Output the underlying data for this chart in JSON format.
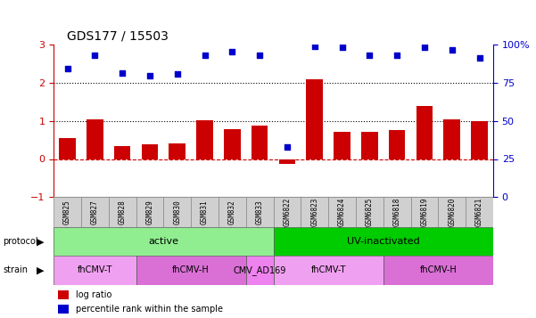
{
  "title": "GDS177 / 15503",
  "samples": [
    "GSM825",
    "GSM827",
    "GSM828",
    "GSM829",
    "GSM830",
    "GSM831",
    "GSM832",
    "GSM833",
    "GSM6822",
    "GSM6823",
    "GSM6824",
    "GSM6825",
    "GSM6818",
    "GSM6819",
    "GSM6820",
    "GSM6821"
  ],
  "log_ratio": [
    0.55,
    1.05,
    0.35,
    0.38,
    0.42,
    1.02,
    0.78,
    0.88,
    -0.12,
    2.1,
    0.72,
    0.72,
    0.75,
    1.38,
    1.05,
    1.0
  ],
  "percentile": [
    2.38,
    2.72,
    2.25,
    2.18,
    2.22,
    2.72,
    2.82,
    2.72,
    0.32,
    2.95,
    2.92,
    2.72,
    2.72,
    2.92,
    2.85,
    2.65
  ],
  "protocol_groups": [
    {
      "label": "active",
      "start": 0,
      "end": 8,
      "color": "#90ee90"
    },
    {
      "label": "UV-inactivated",
      "start": 8,
      "end": 16,
      "color": "#00cc00"
    }
  ],
  "strain_groups": [
    {
      "label": "fhCMV-T",
      "start": 0,
      "end": 3,
      "color": "#f0a0f0"
    },
    {
      "label": "fhCMV-H",
      "start": 3,
      "end": 7,
      "color": "#da70d6"
    },
    {
      "label": "CMV_AD169",
      "start": 7,
      "end": 8,
      "color": "#ee82ee"
    },
    {
      "label": "fhCMV-T",
      "start": 8,
      "end": 12,
      "color": "#f0a0f0"
    },
    {
      "label": "fhCMV-H",
      "start": 12,
      "end": 16,
      "color": "#da70d6"
    }
  ],
  "bar_color": "#cc0000",
  "dot_color": "#0000cc",
  "ylim_left": [
    -1,
    3
  ],
  "ylim_right": [
    0,
    100
  ],
  "left_ticks": [
    -1,
    0,
    1,
    2,
    3
  ],
  "right_ticks": [
    0,
    25,
    50,
    75,
    100
  ],
  "hlines": [
    0,
    1,
    2
  ],
  "hline_styles": [
    "dashed",
    "dotted",
    "dotted"
  ],
  "hline_colors": [
    "#cc0000",
    "#000000",
    "#000000"
  ]
}
